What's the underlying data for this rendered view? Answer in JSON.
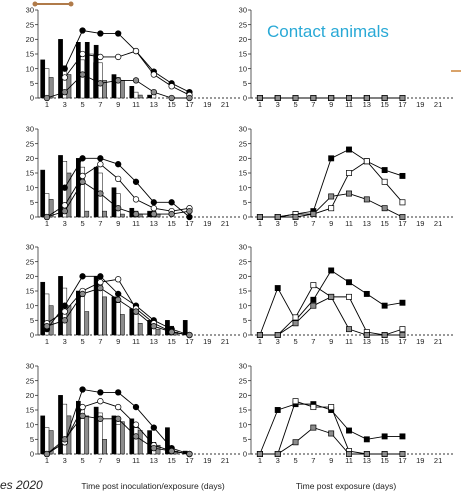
{
  "title": "Contact animals",
  "credit": "es 2020",
  "x_label_left": "Time post inoculation/exposure (days)",
  "x_label_right": "Time post exposure (days)",
  "colors": {
    "black": "#000000",
    "white": "#ffffff",
    "gray": "#8c8c8c",
    "title": "#29a9d6"
  },
  "chart_data": [
    {
      "type": "bar",
      "panel": "inoculated-row-1",
      "ylim": [
        0,
        30
      ],
      "xlim": [
        0,
        22
      ],
      "x_ticks": [
        1,
        3,
        5,
        7,
        9,
        11,
        13,
        15,
        17,
        19,
        21
      ],
      "y_ticks": [
        0,
        5,
        10,
        15,
        20,
        25,
        30
      ],
      "bars": [
        {
          "x": 1,
          "black": 13,
          "white": 10,
          "gray": 7
        },
        {
          "x": 3,
          "black": 20,
          "white": 11,
          "gray": 8
        },
        {
          "x": 5,
          "black": 19,
          "white": 13,
          "gray": 8
        },
        {
          "x": 6,
          "black": 19,
          "white": 15,
          "gray": 12
        },
        {
          "x": 7,
          "black": 18,
          "white": 12,
          "gray": 6
        },
        {
          "x": 9,
          "black": 8,
          "white": 7,
          "gray": 6
        },
        {
          "x": 11,
          "black": 4,
          "white": 2,
          "gray": 1
        },
        {
          "x": 13,
          "black": 1,
          "white": 2,
          "gray": 0
        }
      ],
      "lines": [
        {
          "color": "black",
          "x": [
            3,
            5,
            7,
            9,
            11,
            13,
            15,
            17
          ],
          "values": [
            10,
            23,
            22,
            22,
            16,
            9,
            5,
            2
          ]
        },
        {
          "color": "white",
          "x": [
            3,
            5,
            7,
            9,
            11,
            13,
            15,
            17
          ],
          "values": [
            7,
            15,
            14,
            14,
            16,
            8,
            4,
            1
          ]
        },
        {
          "color": "gray",
          "x": [
            1,
            3,
            5,
            7,
            9,
            11,
            13,
            15,
            17
          ],
          "values": [
            0,
            2,
            8,
            5,
            6,
            6,
            2,
            0,
            0
          ]
        }
      ]
    },
    {
      "type": "line",
      "panel": "contact-row-1",
      "ylim": [
        0,
        30
      ],
      "xlim": [
        0,
        22
      ],
      "x_ticks": [
        1,
        3,
        5,
        7,
        9,
        11,
        13,
        15,
        17,
        19,
        21
      ],
      "y_ticks": [
        0,
        5,
        10,
        15,
        20,
        25,
        30
      ],
      "lines": [
        {
          "color": "black",
          "x": [
            1,
            3,
            5,
            7,
            9,
            11,
            13,
            15,
            17
          ],
          "values": [
            0,
            0,
            0,
            0,
            0,
            0,
            0,
            0,
            0
          ]
        },
        {
          "color": "white",
          "x": [
            1,
            3,
            5,
            7,
            9,
            11,
            13,
            15,
            17
          ],
          "values": [
            0,
            0,
            0,
            0,
            0,
            0,
            0,
            0,
            0
          ]
        },
        {
          "color": "gray",
          "x": [
            1,
            3,
            5,
            7,
            9,
            11,
            13,
            15,
            17
          ],
          "values": [
            0,
            0,
            0,
            0,
            0,
            0,
            0,
            0,
            0
          ]
        }
      ]
    },
    {
      "type": "bar",
      "panel": "inoculated-row-2",
      "ylim": [
        0,
        30
      ],
      "xlim": [
        0,
        22
      ],
      "x_ticks": [
        1,
        3,
        5,
        7,
        9,
        11,
        13,
        15,
        17,
        19,
        21
      ],
      "y_ticks": [
        0,
        5,
        10,
        15,
        20,
        25,
        30
      ],
      "bars": [
        {
          "x": 1,
          "black": 16,
          "white": 8,
          "gray": 6
        },
        {
          "x": 3,
          "black": 21,
          "white": 19,
          "gray": 15
        },
        {
          "x": 5,
          "black": 20,
          "white": 17,
          "gray": 2
        },
        {
          "x": 7,
          "black": 17,
          "white": 15,
          "gray": 2
        },
        {
          "x": 9,
          "black": 10,
          "white": 8,
          "gray": 1
        },
        {
          "x": 11,
          "black": 3,
          "white": 2,
          "gray": 1
        },
        {
          "x": 13,
          "black": 2,
          "white": 2,
          "gray": 1
        }
      ],
      "lines": [
        {
          "color": "black",
          "x": [
            3,
            5,
            7,
            9,
            11,
            13,
            15,
            17
          ],
          "values": [
            10,
            20,
            20,
            18,
            12,
            5,
            5,
            0
          ]
        },
        {
          "color": "white",
          "x": [
            1,
            3,
            5,
            7,
            9,
            11,
            13,
            15,
            17
          ],
          "values": [
            0,
            4,
            14,
            18,
            13,
            6,
            3,
            2,
            3
          ]
        },
        {
          "color": "gray",
          "x": [
            1,
            3,
            5,
            7,
            9,
            11,
            13,
            15,
            17
          ],
          "values": [
            0,
            2,
            12,
            8,
            3,
            1,
            1,
            1,
            2
          ]
        }
      ]
    },
    {
      "type": "line",
      "panel": "contact-row-2",
      "ylim": [
        0,
        30
      ],
      "xlim": [
        0,
        22
      ],
      "x_ticks": [
        1,
        3,
        5,
        7,
        9,
        11,
        13,
        15,
        17,
        19,
        21
      ],
      "y_ticks": [
        0,
        5,
        10,
        15,
        20,
        25,
        30
      ],
      "lines": [
        {
          "color": "black",
          "x": [
            1,
            3,
            5,
            7,
            9,
            11,
            13,
            15,
            17
          ],
          "values": [
            0,
            0,
            1,
            2,
            20,
            23,
            19,
            16,
            14
          ]
        },
        {
          "color": "white",
          "x": [
            1,
            3,
            5,
            7,
            9,
            11,
            13,
            15,
            17
          ],
          "values": [
            0,
            0,
            1,
            1,
            3,
            15,
            19,
            12,
            5
          ]
        },
        {
          "color": "gray",
          "x": [
            1,
            3,
            5,
            7,
            9,
            11,
            13,
            15,
            17
          ],
          "values": [
            0,
            0,
            0,
            1,
            7,
            8,
            6,
            3,
            0
          ]
        }
      ]
    },
    {
      "type": "bar",
      "panel": "inoculated-row-3",
      "ylim": [
        0,
        30
      ],
      "xlim": [
        0,
        22
      ],
      "x_ticks": [
        1,
        3,
        5,
        7,
        9,
        11,
        13,
        15,
        17,
        19,
        21
      ],
      "y_ticks": [
        0,
        5,
        10,
        15,
        20,
        25,
        30
      ],
      "bars": [
        {
          "x": 1,
          "black": 18,
          "white": 14,
          "gray": 10
        },
        {
          "x": 3,
          "black": 20,
          "white": 16,
          "gray": 10
        },
        {
          "x": 5,
          "black": 15,
          "white": 14,
          "gray": 8
        },
        {
          "x": 7,
          "black": 20,
          "white": 18,
          "gray": 13
        },
        {
          "x": 9,
          "black": 13,
          "white": 11,
          "gray": 7
        },
        {
          "x": 11,
          "black": 9,
          "white": 7,
          "gray": 4
        },
        {
          "x": 13,
          "black": 5,
          "white": 4,
          "gray": 2
        },
        {
          "x": 15,
          "black": 5,
          "white": 3,
          "gray": 1
        },
        {
          "x": 17,
          "black": 5,
          "white": 0,
          "gray": 0
        }
      ],
      "lines": [
        {
          "color": "black",
          "x": [
            1,
            3,
            5,
            7,
            9,
            11,
            13,
            15,
            17
          ],
          "values": [
            2,
            10,
            20,
            20,
            14,
            10,
            5,
            2,
            0
          ]
        },
        {
          "color": "white",
          "x": [
            1,
            3,
            5,
            7,
            9,
            11,
            13,
            15,
            17
          ],
          "values": [
            4,
            8,
            15,
            18,
            19,
            9,
            4,
            1,
            0
          ]
        },
        {
          "color": "gray",
          "x": [
            1,
            3,
            5,
            7,
            9,
            11,
            13,
            15,
            17
          ],
          "values": [
            3,
            5,
            14,
            16,
            12,
            8,
            3,
            1,
            0
          ]
        }
      ]
    },
    {
      "type": "line",
      "panel": "contact-row-3",
      "ylim": [
        0,
        30
      ],
      "xlim": [
        0,
        22
      ],
      "x_ticks": [
        1,
        3,
        5,
        7,
        9,
        11,
        13,
        15,
        17,
        19,
        21
      ],
      "y_ticks": [
        0,
        5,
        10,
        15,
        20,
        25,
        30
      ],
      "lines": [
        {
          "color": "black",
          "x": [
            1,
            3,
            5,
            7,
            9,
            11,
            13,
            15,
            17
          ],
          "values": [
            0,
            16,
            5,
            12,
            22,
            18,
            14,
            10,
            11
          ]
        },
        {
          "color": "white",
          "x": [
            1,
            3,
            5,
            7,
            9,
            11,
            13,
            15,
            17
          ],
          "values": [
            0,
            0,
            6,
            17,
            13,
            13,
            1,
            0,
            2
          ]
        },
        {
          "color": "gray",
          "x": [
            1,
            3,
            5,
            7,
            9,
            11,
            13,
            15,
            17
          ],
          "values": [
            0,
            0,
            4,
            10,
            13,
            2,
            0,
            0,
            0
          ]
        }
      ]
    },
    {
      "type": "bar",
      "panel": "inoculated-row-4",
      "ylim": [
        0,
        30
      ],
      "xlim": [
        0,
        22
      ],
      "x_ticks": [
        1,
        3,
        5,
        7,
        9,
        11,
        13,
        15,
        17,
        19,
        21
      ],
      "y_ticks": [
        0,
        5,
        10,
        15,
        20,
        25,
        30
      ],
      "bars": [
        {
          "x": 1,
          "black": 13,
          "white": 9,
          "gray": 8
        },
        {
          "x": 3,
          "black": 20,
          "white": 17,
          "gray": 13
        },
        {
          "x": 5,
          "black": 18,
          "white": 16,
          "gray": 13
        },
        {
          "x": 7,
          "black": 16,
          "white": 14,
          "gray": 5
        },
        {
          "x": 9,
          "black": 13,
          "white": 10,
          "gray": 11
        },
        {
          "x": 11,
          "black": 12,
          "white": 9,
          "gray": 8
        },
        {
          "x": 13,
          "black": 8,
          "white": 4,
          "gray": 3
        },
        {
          "x": 15,
          "black": 9,
          "white": 2,
          "gray": 1
        },
        {
          "x": 17,
          "black": 1,
          "white": 0,
          "gray": 0
        }
      ],
      "lines": [
        {
          "color": "black",
          "x": [
            1,
            3,
            5,
            7,
            9,
            11,
            13,
            15,
            17
          ],
          "values": [
            0,
            4,
            22,
            21,
            21,
            16,
            9,
            2,
            0
          ]
        },
        {
          "color": "white",
          "x": [
            1,
            3,
            5,
            7,
            9,
            11,
            13,
            15,
            17
          ],
          "values": [
            0,
            4,
            16,
            18,
            16,
            10,
            3,
            1,
            0
          ]
        },
        {
          "color": "gray",
          "x": [
            1,
            3,
            5,
            7,
            9,
            11,
            13,
            15,
            17
          ],
          "values": [
            0,
            5,
            13,
            12,
            12,
            6,
            2,
            1,
            0
          ]
        }
      ]
    },
    {
      "type": "line",
      "panel": "contact-row-4",
      "ylim": [
        0,
        30
      ],
      "xlim": [
        0,
        22
      ],
      "x_ticks": [
        1,
        3,
        5,
        7,
        9,
        11,
        13,
        15,
        17,
        19,
        21
      ],
      "y_ticks": [
        0,
        5,
        10,
        15,
        20,
        25,
        30
      ],
      "lines": [
        {
          "color": "black",
          "x": [
            1,
            3,
            5,
            7,
            9,
            11,
            13,
            15,
            17
          ],
          "values": [
            0,
            15,
            17,
            17,
            15,
            8,
            5,
            6,
            6
          ]
        },
        {
          "color": "white",
          "x": [
            1,
            3,
            5,
            7,
            9,
            11,
            13,
            15,
            17
          ],
          "values": [
            0,
            0,
            18,
            16,
            16,
            1,
            0,
            0,
            0
          ]
        },
        {
          "color": "gray",
          "x": [
            1,
            3,
            5,
            7,
            9,
            11,
            13,
            15,
            17
          ],
          "values": [
            0,
            0,
            4,
            9,
            7,
            0,
            0,
            0,
            0
          ]
        }
      ]
    }
  ]
}
